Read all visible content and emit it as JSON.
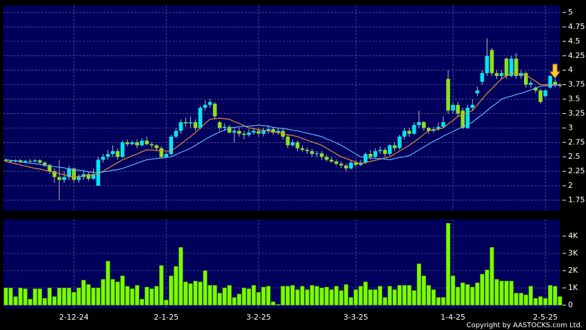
{
  "chart_data": [
    {
      "type": "candlestick",
      "up_color": "#00e8f0",
      "down_color": "#8ee01c",
      "grid": true,
      "ylim": [
        1.57,
        5.12
      ],
      "yticks": [
        1.75,
        2,
        2.25,
        2.5,
        2.75,
        3,
        3.25,
        3.5,
        3.75,
        4,
        4.25,
        4.5,
        4.75,
        5
      ],
      "open": [
        2.45,
        2.43,
        2.42,
        2.44,
        2.41,
        2.43,
        2.42,
        2.44,
        2.4,
        2.36,
        2.25,
        2.15,
        2.1,
        2.15,
        2.3,
        2.1,
        2.15,
        2.2,
        2.12,
        2.0,
        2.45,
        2.5,
        2.55,
        2.6,
        2.5,
        2.75,
        2.72,
        2.75,
        2.7,
        2.78,
        2.72,
        2.7,
        2.65,
        2.5,
        2.55,
        2.85,
        2.95,
        3.1,
        3.08,
        3.1,
        3.0,
        3.35,
        3.4,
        3.42,
        3.1,
        3.0,
        3.02,
        2.92,
        2.95,
        2.9,
        2.88,
        2.92,
        2.95,
        2.9,
        2.95,
        2.98,
        2.92,
        2.95,
        2.85,
        2.7,
        2.75,
        2.65,
        2.62,
        2.6,
        2.55,
        2.56,
        2.5,
        2.45,
        2.42,
        2.38,
        2.35,
        2.3,
        2.4,
        2.36,
        2.4,
        2.55,
        2.5,
        2.6,
        2.62,
        2.55,
        2.7,
        2.65,
        2.85,
        2.95,
        2.9,
        3.05,
        3.1,
        3.0,
        2.95,
        2.98,
        3.02,
        3.85,
        3.3,
        3.4,
        3.3,
        3.0,
        3.35,
        3.6,
        3.8,
        3.95,
        4.35,
        3.95,
        3.9,
        4.2,
        3.9,
        4.2,
        3.9,
        3.95,
        3.75,
        3.7,
        3.65,
        3.55,
        3.7,
        3.8,
        3.75
      ],
      "high": [
        2.47,
        2.45,
        2.46,
        2.46,
        2.45,
        2.46,
        2.46,
        2.46,
        2.42,
        2.38,
        2.3,
        2.45,
        2.25,
        2.35,
        2.32,
        2.2,
        2.25,
        2.24,
        2.3,
        2.5,
        2.55,
        2.62,
        2.7,
        2.65,
        2.78,
        2.8,
        2.78,
        2.8,
        2.82,
        2.85,
        2.76,
        2.72,
        2.68,
        2.6,
        2.88,
        3.0,
        3.15,
        3.18,
        3.2,
        3.15,
        3.38,
        3.48,
        3.5,
        3.45,
        3.12,
        3.08,
        3.05,
        3.0,
        3.0,
        2.95,
        2.98,
        3.0,
        3.0,
        3.0,
        3.05,
        3.02,
        3.0,
        2.98,
        2.88,
        2.8,
        2.78,
        2.7,
        2.66,
        2.64,
        2.6,
        2.6,
        2.54,
        2.5,
        2.46,
        2.42,
        2.38,
        2.45,
        2.45,
        2.45,
        2.58,
        2.62,
        2.65,
        2.68,
        2.66,
        2.72,
        2.75,
        2.88,
        3.0,
        3.0,
        3.1,
        3.3,
        3.12,
        3.02,
        3.02,
        3.1,
        3.2,
        4.0,
        3.45,
        3.45,
        3.35,
        3.4,
        3.5,
        3.72,
        4.0,
        4.55,
        4.38,
        4.0,
        4.0,
        4.22,
        4.25,
        4.3,
        4.0,
        3.98,
        3.82,
        3.72,
        3.68,
        3.68,
        3.92,
        3.85,
        3.78
      ],
      "low": [
        2.41,
        2.4,
        2.4,
        2.39,
        2.39,
        2.4,
        2.4,
        2.38,
        2.33,
        2.2,
        2.05,
        1.75,
        2.05,
        2.1,
        2.05,
        2.05,
        2.1,
        2.08,
        2.1,
        2.0,
        2.4,
        2.45,
        2.5,
        2.45,
        2.48,
        2.68,
        2.7,
        2.65,
        2.68,
        2.7,
        2.65,
        2.6,
        2.48,
        2.48,
        2.52,
        2.82,
        2.9,
        3.02,
        3.0,
        2.95,
        2.98,
        3.3,
        3.35,
        3.15,
        2.95,
        2.95,
        2.9,
        2.75,
        2.85,
        2.8,
        2.85,
        2.88,
        2.85,
        2.85,
        2.9,
        2.88,
        2.88,
        2.8,
        2.65,
        2.68,
        2.6,
        2.58,
        2.55,
        2.5,
        2.5,
        2.45,
        2.42,
        2.4,
        2.35,
        2.3,
        2.25,
        2.28,
        2.32,
        2.34,
        2.38,
        2.45,
        2.48,
        2.55,
        2.5,
        2.52,
        2.6,
        2.62,
        2.8,
        2.85,
        2.88,
        3.0,
        2.95,
        2.9,
        2.92,
        2.95,
        3.0,
        3.25,
        3.25,
        3.2,
        2.98,
        2.98,
        3.3,
        3.55,
        3.75,
        3.9,
        3.9,
        3.85,
        3.85,
        3.85,
        3.88,
        3.85,
        3.85,
        3.7,
        3.7,
        3.6,
        3.42,
        3.52,
        3.68,
        3.7,
        3.7
      ],
      "close": [
        2.43,
        2.42,
        2.44,
        2.41,
        2.43,
        2.42,
        2.44,
        2.4,
        2.36,
        2.25,
        2.15,
        2.1,
        2.15,
        2.3,
        2.1,
        2.15,
        2.2,
        2.12,
        2.2,
        2.45,
        2.5,
        2.55,
        2.6,
        2.5,
        2.75,
        2.72,
        2.75,
        2.7,
        2.78,
        2.72,
        2.7,
        2.65,
        2.5,
        2.55,
        2.85,
        2.95,
        3.1,
        3.08,
        3.1,
        3.0,
        3.35,
        3.4,
        3.45,
        3.2,
        3.0,
        3.02,
        2.92,
        2.95,
        2.9,
        2.88,
        2.92,
        2.95,
        2.9,
        2.95,
        2.98,
        2.92,
        2.95,
        2.85,
        2.7,
        2.75,
        2.65,
        2.62,
        2.6,
        2.55,
        2.56,
        2.5,
        2.45,
        2.42,
        2.38,
        2.35,
        2.3,
        2.4,
        2.36,
        2.4,
        2.55,
        2.5,
        2.6,
        2.62,
        2.55,
        2.7,
        2.65,
        2.85,
        2.95,
        2.9,
        3.05,
        3.1,
        3.0,
        2.95,
        2.98,
        3.02,
        3.1,
        3.3,
        3.4,
        3.25,
        3.0,
        3.35,
        3.4,
        3.65,
        3.95,
        4.25,
        3.95,
        3.9,
        3.95,
        3.9,
        4.2,
        3.9,
        3.95,
        3.75,
        3.78,
        3.65,
        3.45,
        3.65,
        3.9,
        3.75,
        3.73
      ],
      "series": [
        {
          "color": "#e8902a",
          "values": [
            2.42,
            2.4,
            2.38,
            2.36,
            2.34,
            2.32,
            2.3,
            2.29,
            2.27,
            2.25,
            2.23,
            2.21,
            2.19,
            2.17,
            2.15,
            2.16,
            2.17,
            2.18,
            2.19,
            2.2,
            2.25,
            2.3,
            2.35,
            2.4,
            2.45,
            2.48,
            2.52,
            2.55,
            2.59,
            2.62,
            2.62,
            2.61,
            2.61,
            2.6,
            2.6,
            2.66,
            2.72,
            2.79,
            2.85,
            2.92,
            3.0,
            3.08,
            3.15,
            3.16,
            3.17,
            3.16,
            3.15,
            3.11,
            3.08,
            3.04,
            3.0,
            2.99,
            2.97,
            2.96,
            2.95,
            2.93,
            2.92,
            2.9,
            2.88,
            2.87,
            2.85,
            2.82,
            2.79,
            2.76,
            2.73,
            2.7,
            2.65,
            2.6,
            2.55,
            2.5,
            2.47,
            2.44,
            2.41,
            2.38,
            2.4,
            2.42,
            2.44,
            2.46,
            2.48,
            2.5,
            2.55,
            2.6,
            2.65,
            2.7,
            2.76,
            2.82,
            2.89,
            2.95,
            2.97,
            2.98,
            3.0,
            3.07,
            3.13,
            3.2,
            3.23,
            3.27,
            3.3,
            3.4,
            3.5,
            3.6,
            3.68,
            3.77,
            3.85,
            3.9,
            3.95,
            3.94,
            3.93,
            3.92,
            3.86,
            3.81,
            3.75,
            3.75,
            3.75,
            3.75,
            3.75
          ]
        },
        {
          "color": "#60b8ff",
          "values": [
            2.45,
            2.44,
            2.43,
            2.41,
            2.4,
            2.39,
            2.38,
            2.37,
            2.35,
            2.34,
            2.33,
            2.32,
            2.31,
            2.29,
            2.28,
            2.27,
            2.26,
            2.24,
            2.23,
            2.22,
            2.24,
            2.25,
            2.27,
            2.28,
            2.3,
            2.33,
            2.36,
            2.39,
            2.42,
            2.45,
            2.46,
            2.47,
            2.48,
            2.49,
            2.5,
            2.54,
            2.58,
            2.61,
            2.65,
            2.7,
            2.75,
            2.8,
            2.85,
            2.89,
            2.93,
            2.96,
            3.0,
            3.01,
            3.02,
            3.03,
            3.03,
            3.04,
            3.05,
            3.04,
            3.03,
            3.01,
            3.0,
            2.99,
            2.98,
            2.96,
            2.95,
            2.93,
            2.91,
            2.89,
            2.87,
            2.85,
            2.81,
            2.78,
            2.74,
            2.7,
            2.65,
            2.6,
            2.55,
            2.5,
            2.49,
            2.48,
            2.47,
            2.47,
            2.46,
            2.45,
            2.47,
            2.49,
            2.5,
            2.52,
            2.57,
            2.62,
            2.67,
            2.72,
            2.77,
            2.81,
            2.86,
            2.9,
            2.94,
            2.98,
            3.02,
            3.06,
            3.1,
            3.17,
            3.23,
            3.3,
            3.37,
            3.43,
            3.5,
            3.53,
            3.55,
            3.58,
            3.6,
            3.63,
            3.66,
            3.69,
            3.72,
            3.73,
            3.74,
            3.74,
            3.75
          ]
        }
      ]
    },
    {
      "type": "bar",
      "color": "#7cfc00",
      "grid": true,
      "ylim": [
        0,
        4960
      ],
      "yticks": [
        0,
        {
          "value": 1000,
          "label": "1K"
        },
        {
          "value": 2000,
          "label": "2K"
        },
        {
          "value": 3000,
          "label": "3K"
        },
        {
          "value": 4000,
          "label": "4K"
        }
      ],
      "categories": [
        null,
        null,
        null,
        null,
        null,
        null,
        null,
        null,
        null,
        null,
        null,
        null,
        null,
        null,
        "2-12-24",
        null,
        null,
        null,
        null,
        null,
        null,
        null,
        null,
        null,
        null,
        null,
        null,
        null,
        null,
        null,
        null,
        null,
        null,
        "2-1-25",
        null,
        null,
        null,
        null,
        null,
        null,
        null,
        null,
        null,
        null,
        null,
        null,
        null,
        null,
        null,
        null,
        null,
        null,
        "3-2-25",
        null,
        null,
        null,
        null,
        null,
        null,
        null,
        null,
        null,
        null,
        null,
        null,
        null,
        null,
        null,
        null,
        null,
        null,
        null,
        "3-3-25",
        null,
        null,
        null,
        null,
        null,
        null,
        null,
        null,
        null,
        null,
        null,
        null,
        null,
        null,
        null,
        null,
        null,
        null,
        null,
        "1-4-25",
        null,
        null,
        null,
        null,
        null,
        null,
        null,
        null,
        null,
        null,
        null,
        null,
        null,
        null,
        null,
        null,
        null,
        null,
        "2-5-25",
        null,
        null,
        null
      ],
      "values": [
        1000,
        1000,
        500,
        1000,
        950,
        350,
        950,
        950,
        400,
        1000,
        500,
        1000,
        1000,
        1000,
        750,
        1000,
        1450,
        1200,
        1000,
        1000,
        1500,
        2550,
        1500,
        1350,
        1700,
        1100,
        950,
        1150,
        350,
        1050,
        950,
        1100,
        2300,
        300,
        1700,
        2250,
        3350,
        1350,
        1250,
        1400,
        1350,
        2000,
        1150,
        1150,
        700,
        1000,
        1150,
        450,
        650,
        1000,
        950,
        1150,
        750,
        1050,
        1100,
        200,
        50,
        1100,
        1100,
        1150,
        900,
        1100,
        900,
        1150,
        1100,
        1000,
        1050,
        900,
        1100,
        850,
        1200,
        450,
        900,
        1100,
        1350,
        900,
        900,
        1100,
        450,
        1100,
        900,
        1150,
        1150,
        1150,
        850,
        2400,
        1700,
        1150,
        900,
        450,
        450,
        4750,
        1700,
        1050,
        1300,
        1200,
        1050,
        1300,
        1800,
        2050,
        3350,
        1500,
        1400,
        1400,
        1400,
        700,
        700,
        600,
        1100,
        400,
        500,
        400,
        1150,
        1100,
        500
      ]
    }
  ],
  "footer": "Copyright by AASTOCKS.com Ltd."
}
